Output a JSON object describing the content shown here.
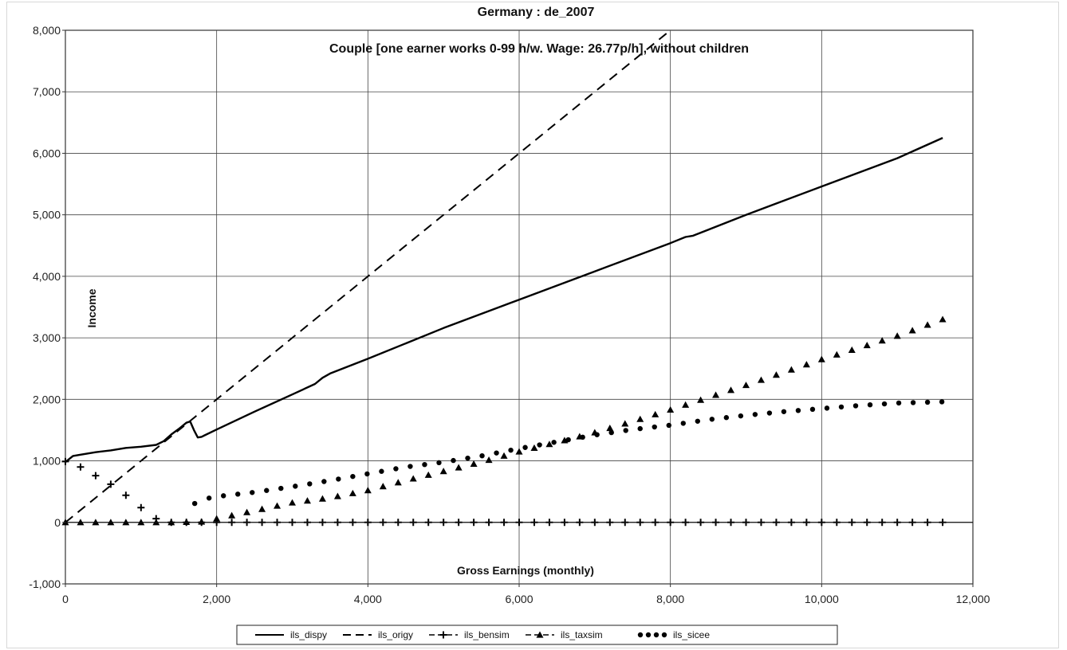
{
  "chart_data": {
    "type": "line",
    "title": "Germany : de_2007",
    "subtitle": "Couple [one earner works 0-99 h/w. Wage: 26.77p/h], without children",
    "xlabel": "Gross Earnings (monthly)",
    "ylabel": "Income",
    "xlim": [
      0,
      12000
    ],
    "ylim": [
      -1000,
      8000
    ],
    "x_ticks": [
      "0",
      "2,000",
      "4,000",
      "6,000",
      "8,000",
      "10,000",
      "12,000"
    ],
    "y_ticks": [
      "-1,000",
      "0",
      "1,000",
      "2,000",
      "3,000",
      "4,000",
      "5,000",
      "6,000",
      "7,000",
      "8,000"
    ],
    "grid": true,
    "legend_position": "bottom",
    "series": [
      {
        "name": "ils_dispy",
        "style": "solid",
        "x": [
          0,
          100,
          200,
          400,
          600,
          800,
          1000,
          1200,
          1300,
          1400,
          1500,
          1600,
          1650,
          1700,
          1750,
          1800,
          2000,
          2500,
          3000,
          3300,
          3400,
          3500,
          4000,
          5000,
          6000,
          7000,
          8000,
          8200,
          8300,
          9000,
          10000,
          11000,
          11600
        ],
        "y": [
          980,
          1080,
          1100,
          1140,
          1170,
          1210,
          1230,
          1260,
          1320,
          1430,
          1520,
          1620,
          1640,
          1500,
          1380,
          1390,
          1510,
          1800,
          2080,
          2250,
          2350,
          2420,
          2660,
          3160,
          3620,
          4080,
          4540,
          4640,
          4660,
          5000,
          5460,
          5920,
          6250
        ]
      },
      {
        "name": "ils_origy",
        "style": "dashed",
        "x": [
          0,
          8000
        ],
        "y": [
          0,
          8000
        ]
      },
      {
        "name": "ils_bensim",
        "style": "plus-markers",
        "x": [
          0,
          100,
          200,
          300,
          400,
          500,
          600,
          700,
          800,
          900,
          1000,
          1100,
          1200,
          1300,
          1400,
          1600,
          2000,
          4000,
          6000,
          8000,
          10000,
          11600
        ],
        "y": [
          990,
          990,
          900,
          820,
          760,
          700,
          620,
          520,
          440,
          330,
          240,
          140,
          60,
          10,
          0,
          0,
          0,
          0,
          0,
          0,
          0,
          0
        ]
      },
      {
        "name": "ils_taxsim",
        "style": "triangle-markers",
        "x": [
          0,
          1400,
          1800,
          2000,
          2500,
          3000,
          3500,
          4000,
          4500,
          5000,
          5500,
          6000,
          6500,
          7000,
          7500,
          8000,
          9000,
          10000,
          11000,
          11600
        ],
        "y": [
          0,
          0,
          10,
          60,
          190,
          320,
          400,
          520,
          680,
          830,
          980,
          1150,
          1300,
          1460,
          1640,
          1830,
          2230,
          2650,
          3030,
          3300
        ]
      },
      {
        "name": "ils_sicee",
        "style": "dots",
        "x": [
          0,
          1600,
          1650,
          1700,
          1800,
          2000,
          2500,
          3000,
          3500,
          4000,
          4500,
          5000,
          5500,
          6000,
          6500,
          7000,
          7500,
          8000,
          8500,
          9000,
          9500,
          10000,
          10500,
          11000,
          11600
        ],
        "y": [
          0,
          0,
          150,
          300,
          370,
          420,
          490,
          580,
          680,
          790,
          900,
          980,
          1080,
          1200,
          1310,
          1420,
          1510,
          1580,
          1670,
          1740,
          1800,
          1850,
          1900,
          1940,
          1960
        ]
      }
    ]
  }
}
